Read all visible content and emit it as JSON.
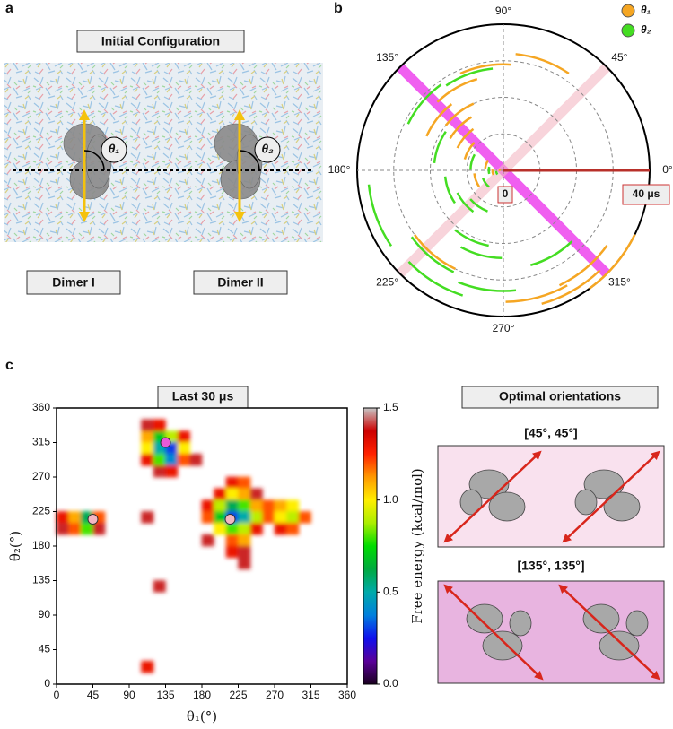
{
  "panel_labels": [
    "a",
    "b",
    "c"
  ],
  "panel_a": {
    "title": "Initial Configuration",
    "angle_labels": [
      "θ₁",
      "θ₂"
    ],
    "dimer_labels": [
      "Dimer I",
      "Dimer II"
    ]
  },
  "chart_data": [
    {
      "type": "polar",
      "series": [
        {
          "name": "θ₁",
          "color": "#f5a623",
          "theta": [
            175,
            190,
            160,
            200,
            150,
            140,
            135,
            128,
            142,
            120,
            100,
            70,
            310,
            300,
            320,
            230,
            285
          ],
          "r": [
            1,
            3,
            5,
            8,
            11,
            14,
            17,
            20,
            23,
            26,
            29,
            32,
            35,
            38,
            40,
            30,
            36
          ]
        },
        {
          "name": "θ₂",
          "color": "#44dd22",
          "theta": [
            200,
            180,
            215,
            165,
            235,
            220,
            200,
            160,
            245,
            255,
            300,
            140,
            230,
            262,
            238,
            110,
            200
          ],
          "r": [
            2,
            4,
            6,
            9,
            12,
            14,
            16,
            19,
            21,
            24,
            27,
            29,
            31,
            33,
            36,
            28,
            37
          ]
        }
      ],
      "rlim": [
        0,
        40
      ],
      "rticks": [
        {
          "value": 0,
          "label": "0"
        },
        {
          "value": 40,
          "label": "40 μs"
        }
      ],
      "rgrid": [
        10,
        20,
        30
      ],
      "thetaticks": [
        {
          "value": 0,
          "label": "0°"
        },
        {
          "value": 45,
          "label": "45°"
        },
        {
          "value": 90,
          "label": "90°"
        },
        {
          "value": 135,
          "label": "135°"
        },
        {
          "value": 180,
          "label": "180°"
        },
        {
          "value": 225,
          "label": "225°"
        },
        {
          "value": 270,
          "label": "270°"
        },
        {
          "value": 315,
          "label": "315°"
        }
      ],
      "legend": "upper right"
    },
    {
      "type": "heatmap",
      "title": "Last 30 μs",
      "xlabel": "θ₁(°)",
      "ylabel": "θ₂(°)",
      "xlim": [
        0,
        360
      ],
      "ylim": [
        0,
        360
      ],
      "xticks": [
        0,
        45,
        90,
        135,
        180,
        225,
        270,
        315,
        360
      ],
      "yticks": [
        0,
        45,
        90,
        135,
        180,
        225,
        270,
        315,
        360
      ],
      "x": [
        7.5,
        22.5,
        37.5,
        52.5,
        7.5,
        22.5,
        37.5,
        52.5,
        112.5,
        127.5,
        142.5,
        157.5,
        112.5,
        127.5,
        142.5,
        157.5,
        112.5,
        127.5,
        142.5,
        157.5,
        172.5,
        127.5,
        142.5,
        112.5,
        127.5,
        217.5,
        232.5,
        202.5,
        217.5,
        232.5,
        247.5,
        187.5,
        202.5,
        217.5,
        232.5,
        247.5,
        262.5,
        277.5,
        292.5,
        187.5,
        202.5,
        217.5,
        232.5,
        247.5,
        262.5,
        277.5,
        292.5,
        307.5,
        202.5,
        217.5,
        232.5,
        247.5,
        277.5,
        292.5,
        187.5,
        217.5,
        232.5,
        217.5,
        232.5,
        232.5,
        112.5,
        127.5,
        112.5
      ],
      "y": [
        217.5,
        217.5,
        217.5,
        217.5,
        202.5,
        202.5,
        202.5,
        202.5,
        322.5,
        322.5,
        322.5,
        322.5,
        307.5,
        307.5,
        307.5,
        307.5,
        292.5,
        292.5,
        292.5,
        292.5,
        292.5,
        277.5,
        277.5,
        337.5,
        337.5,
        262.5,
        262.5,
        247.5,
        247.5,
        247.5,
        247.5,
        232.5,
        232.5,
        232.5,
        232.5,
        232.5,
        232.5,
        232.5,
        232.5,
        217.5,
        217.5,
        217.5,
        217.5,
        217.5,
        217.5,
        217.5,
        217.5,
        217.5,
        202.5,
        202.5,
        202.5,
        202.5,
        202.5,
        202.5,
        187.5,
        187.5,
        187.5,
        172.5,
        172.5,
        157.5,
        217.5,
        127.5,
        22.5
      ],
      "z": [
        1.3,
        1.1,
        0.6,
        1.2,
        1.4,
        1.2,
        0.8,
        1.4,
        1.1,
        0.7,
        0.9,
        1.3,
        1.0,
        0.5,
        0.3,
        1.0,
        1.3,
        0.8,
        0.4,
        1.2,
        1.4,
        1.4,
        1.3,
        1.4,
        1.3,
        1.3,
        1.2,
        1.3,
        1.0,
        1.1,
        1.4,
        1.3,
        0.9,
        0.6,
        0.8,
        1.1,
        1.2,
        1.1,
        1.0,
        1.2,
        0.7,
        0.3,
        0.5,
        0.9,
        1.2,
        1.0,
        0.9,
        1.2,
        1.0,
        0.8,
        0.9,
        1.3,
        1.3,
        1.2,
        1.4,
        1.2,
        1.1,
        1.3,
        1.4,
        1.4,
        1.4,
        1.4,
        1.3
      ],
      "zlim": [
        0,
        1.5
      ],
      "zticks": [
        {
          "value": 0,
          "label": "0.0"
        },
        {
          "value": 0.5,
          "label": "0.5"
        },
        {
          "value": 1,
          "label": "1.0"
        },
        {
          "value": 1.5,
          "label": "1.5"
        }
      ],
      "colorbar_label": "Free energy (kcal/mol)",
      "colormap": [
        "#1a0020",
        "#5a0099",
        "#1010ee",
        "#0080dd",
        "#00aaaa",
        "#00aa40",
        "#00dd00",
        "#aaee00",
        "#ffee00",
        "#ff9900",
        "#ff2200",
        "#cc0000",
        "#c8c8c8"
      ],
      "minima": {
        "x": [
          45,
          135,
          215
        ],
        "y": [
          215,
          315,
          215
        ],
        "colors": [
          "#f4b6c2",
          "#e85ad8",
          "#f4b6c2"
        ]
      }
    }
  ],
  "panel_c_right": {
    "title": "Optimal orientations",
    "panels": [
      {
        "label": "[45°, 45°]",
        "color": "#f9e1ee"
      },
      {
        "label": "[135°, 135°]",
        "color": "#e8b4e0"
      }
    ]
  }
}
